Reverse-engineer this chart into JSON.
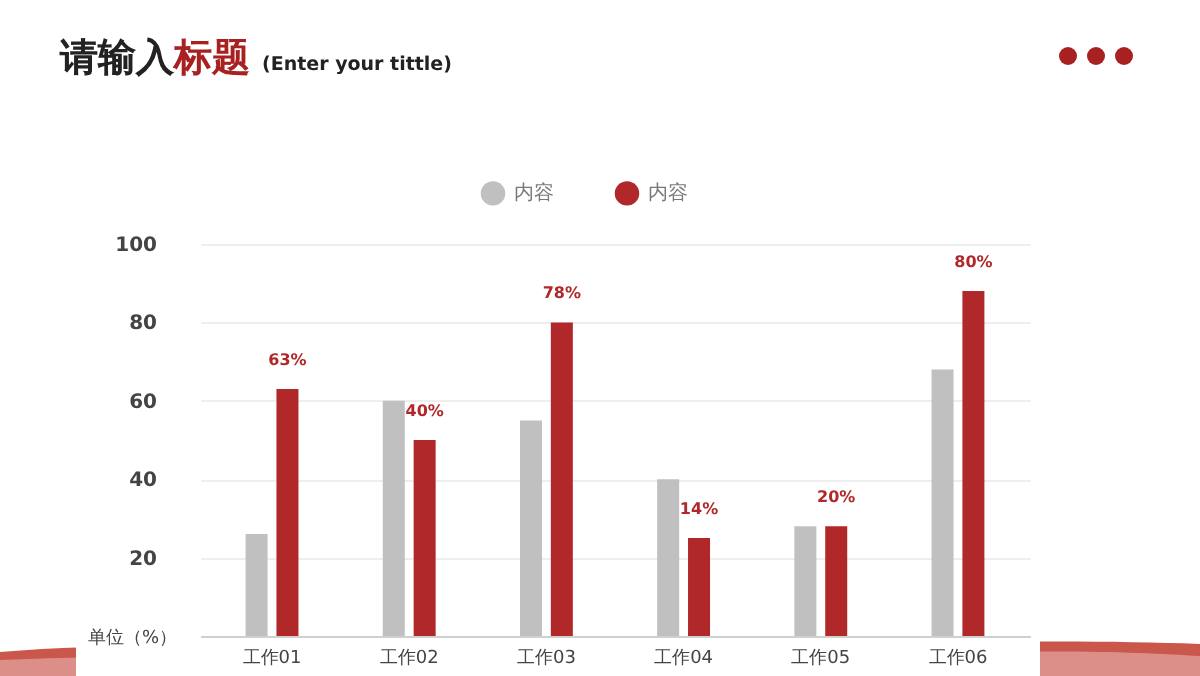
{
  "chart_data": {
    "type": "bar",
    "title": "请输入标题",
    "subtitle": "(Enter your tittle)",
    "ylabel": "单位（%）",
    "categories": [
      "工作01",
      "工作02",
      "工作03",
      "工作04",
      "工作05",
      "工作06"
    ],
    "series": [
      {
        "name": "内容",
        "color": "#c0c0c0",
        "values": [
          26,
          60,
          55,
          40,
          28,
          68
        ]
      },
      {
        "name": "内容",
        "color": "#b0282a",
        "values": [
          63,
          50,
          80,
          25,
          28,
          88
        ]
      }
    ],
    "annotations": [
      {
        "text": "63%",
        "x": "工作01",
        "y": 63
      },
      {
        "text": "40%",
        "x": "工作02",
        "y": 50
      },
      {
        "text": "78%",
        "x": "工作03",
        "y": 80
      },
      {
        "text": "14%",
        "x": "工作04",
        "y": 25
      },
      {
        "text": "20%",
        "x": "工作05",
        "y": 28
      },
      {
        "text": "80%",
        "x": "工作06",
        "y": 88
      }
    ],
    "ylim": [
      0,
      100
    ],
    "yticks": [
      20,
      40,
      60,
      80,
      100
    ],
    "grid": "y",
    "legend": "top"
  }
}
